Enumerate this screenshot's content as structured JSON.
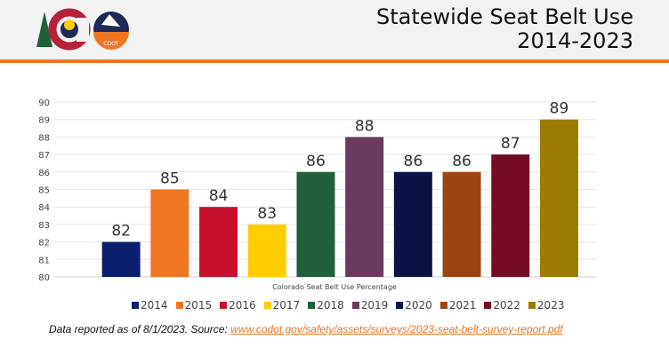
{
  "header": {
    "title_line1": "Statewide Seat Belt Use",
    "title_line2": "2014-2023",
    "logo_text": "CDOT"
  },
  "chart_data": {
    "type": "bar",
    "title": "Statewide Seat Belt Use 2014-2023",
    "xlabel": "Colorado Seat Belt Use Percentage",
    "ylabel": "",
    "ylim": [
      80,
      90
    ],
    "yticks": [
      80,
      81,
      82,
      83,
      84,
      85,
      86,
      87,
      88,
      89,
      90
    ],
    "grid": true,
    "legend_position": "bottom",
    "categories": [
      "2014",
      "2015",
      "2016",
      "2017",
      "2018",
      "2019",
      "2020",
      "2021",
      "2022",
      "2023"
    ],
    "values": [
      82,
      85,
      84,
      83,
      86,
      88,
      86,
      86,
      87,
      89
    ],
    "colors": [
      "#0b1f6e",
      "#ee7623",
      "#c8102e",
      "#ffcd00",
      "#215f3a",
      "#6b3a5e",
      "#0b1445",
      "#9a4510",
      "#760b25",
      "#9c7c00"
    ]
  },
  "footer": {
    "note": "Data reported as of 8/1/2023. Source: ",
    "link": "www.codot.gov/safety/assets/surveys/2023-seat-belt-survey-report.pdf"
  }
}
